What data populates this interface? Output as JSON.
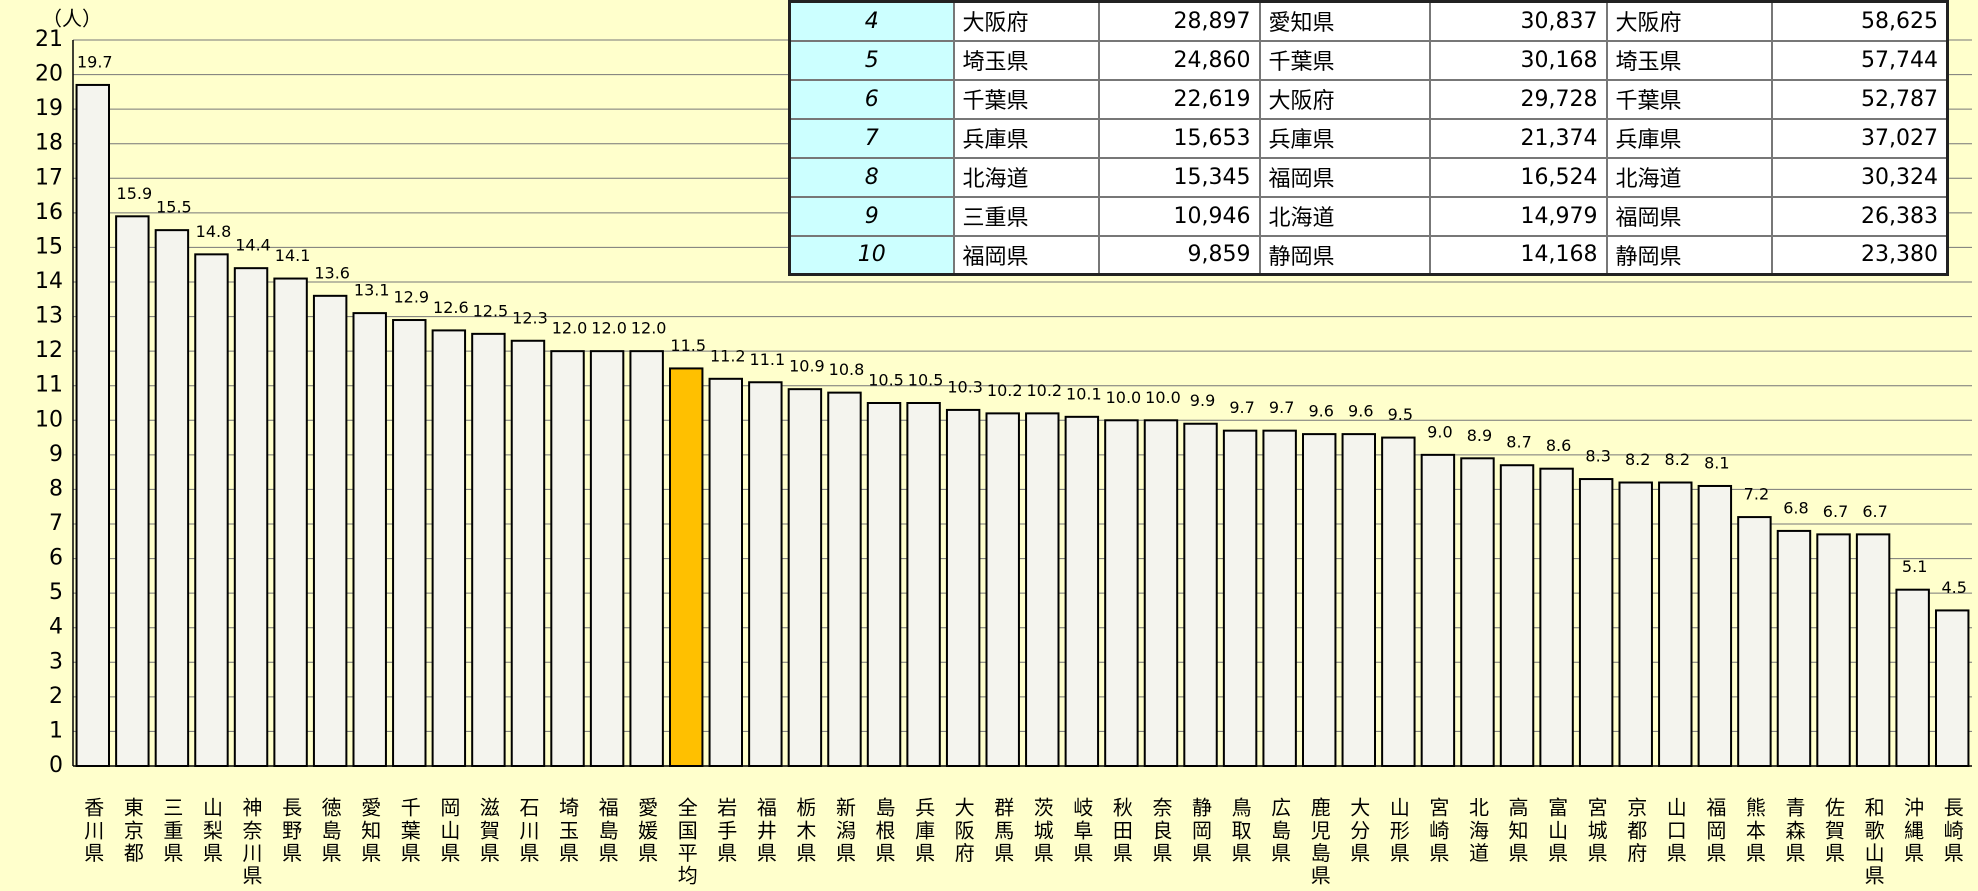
{
  "chart_data": {
    "type": "bar",
    "unit_label": "（人）",
    "categories": [
      "香川県",
      "東京都",
      "三重県",
      "山梨県",
      "神奈川県",
      "長野県",
      "徳島県",
      "愛知県",
      "千葉県",
      "岡山県",
      "滋賀県",
      "石川県",
      "埼玉県",
      "福島県",
      "愛媛県",
      "全国平均",
      "岩手県",
      "福井県",
      "栃木県",
      "新潟県",
      "島根県",
      "兵庫県",
      "大阪府",
      "群馬県",
      "茨城県",
      "岐阜県",
      "秋田県",
      "奈良県",
      "静岡県",
      "鳥取県",
      "広島県",
      "鹿児島県",
      "大分県",
      "山形県",
      "宮崎県",
      "北海道",
      "高知県",
      "富山県",
      "宮城県",
      "京都府",
      "山口県",
      "福岡県",
      "熊本県",
      "青森県",
      "佐賀県",
      "和歌山県",
      "沖縄県",
      "長崎県"
    ],
    "values": [
      19.7,
      15.9,
      15.5,
      14.8,
      14.4,
      14.1,
      13.6,
      13.1,
      12.9,
      12.6,
      12.5,
      12.3,
      12.0,
      12.0,
      12.0,
      11.5,
      11.2,
      11.1,
      10.9,
      10.8,
      10.5,
      10.5,
      10.3,
      10.2,
      10.2,
      10.1,
      10.0,
      10.0,
      9.9,
      9.7,
      9.7,
      9.6,
      9.6,
      9.5,
      9.0,
      8.9,
      8.7,
      8.6,
      8.3,
      8.2,
      8.2,
      8.1,
      7.2,
      6.8,
      6.7,
      6.7,
      5.1,
      4.5
    ],
    "value_labels": [
      "19.7",
      "15.9",
      "15.5",
      "14.8",
      "14.4",
      "14.1",
      "13.6",
      "13.1",
      "12.9",
      "12.6",
      "12.5",
      "12.3",
      "12.0",
      "12.0",
      "12.0",
      "11.5",
      "11.2",
      "11.1",
      "10.9",
      "10.8",
      "10.5",
      "10.5",
      "10.3",
      "10.2",
      "10.2",
      "10.1",
      "10.0",
      "10.0",
      "9.9",
      "9.7",
      "9.7",
      "9.6",
      "9.6",
      "9.5",
      "9.0",
      "8.9",
      "8.7",
      "8.6",
      "8.3",
      "8.2",
      "8.2",
      "8.1",
      "7.2",
      "6.8",
      "6.7",
      "6.7",
      "5.1",
      "4.5"
    ],
    "color": "#f4f4ee",
    "highlight": {
      "index": 15,
      "color": "#ffc000"
    },
    "ylim": [
      0,
      21
    ],
    "yticks": [
      0,
      1,
      2,
      3,
      4,
      5,
      6,
      7,
      8,
      9,
      10,
      11,
      12,
      13,
      14,
      15,
      16,
      17,
      18,
      19,
      20,
      21
    ],
    "grid": true
  },
  "table": {
    "rows": [
      [
        "4",
        "大阪府",
        "28,897",
        "愛知県",
        "30,837",
        "大阪府",
        "58,625"
      ],
      [
        "5",
        "埼玉県",
        "24,860",
        "千葉県",
        "30,168",
        "埼玉県",
        "57,744"
      ],
      [
        "6",
        "千葉県",
        "22,619",
        "大阪府",
        "29,728",
        "千葉県",
        "52,787"
      ],
      [
        "7",
        "兵庫県",
        "15,653",
        "兵庫県",
        "21,374",
        "兵庫県",
        "37,027"
      ],
      [
        "8",
        "北海道",
        "15,345",
        "福岡県",
        "16,524",
        "北海道",
        "30,324"
      ],
      [
        "9",
        "三重県",
        "10,946",
        "北海道",
        "14,979",
        "福岡県",
        "26,383"
      ],
      [
        "10",
        "福岡県",
        "9,859",
        "静岡県",
        "14,168",
        "静岡県",
        "23,380"
      ]
    ]
  }
}
